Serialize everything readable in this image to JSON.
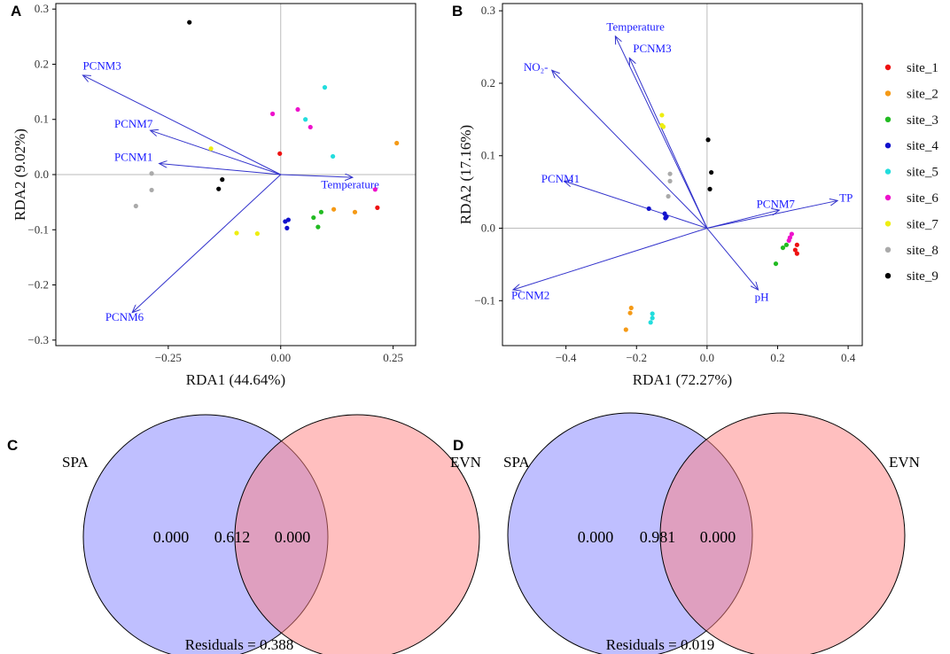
{
  "colors": {
    "arrow": "#3333cc",
    "arrow_label": "#1a1aff",
    "zero_line": "#bbbbbb",
    "frame": "#000000",
    "venn_left": "#8080ff",
    "venn_right": "#ff8080"
  },
  "legend": {
    "items": [
      {
        "label": "site_1",
        "color": "#ee1111"
      },
      {
        "label": "site_2",
        "color": "#f59a16"
      },
      {
        "label": "site_3",
        "color": "#22bb22"
      },
      {
        "label": "site_4",
        "color": "#1111cc"
      },
      {
        "label": "site_5",
        "color": "#22dddd"
      },
      {
        "label": "site_6",
        "color": "#ee11cc"
      },
      {
        "label": "site_7",
        "color": "#eeee11"
      },
      {
        "label": "site_8",
        "color": "#aaaaaa"
      },
      {
        "label": "site_9",
        "color": "#000000"
      }
    ]
  },
  "chart_data": [
    {
      "type": "scatter",
      "panel": "A",
      "xlabel": "RDA1 (44.64%)",
      "ylabel": "RDA2 (9.02%)",
      "xlim": [
        -0.5,
        0.3
      ],
      "ylim": [
        -0.31,
        0.31
      ],
      "xticks": [
        -0.25,
        0.0,
        0.25
      ],
      "xtick_labels": [
        "−0.25",
        "0.00",
        "0.25"
      ],
      "yticks": [
        -0.3,
        -0.2,
        -0.1,
        0.0,
        0.1,
        0.2,
        0.3
      ],
      "ytick_labels": [
        "−0.3",
        "−0.2",
        "−0.1",
        "0.0",
        "0.1",
        "0.2",
        "0.3"
      ],
      "arrows": [
        {
          "label": "PCNM3",
          "x": -0.44,
          "y": 0.18,
          "lx": -0.44,
          "ly": 0.19,
          "anchor": "start"
        },
        {
          "label": "PCNM7",
          "x": -0.29,
          "y": 0.08,
          "lx": -0.37,
          "ly": 0.085,
          "anchor": "start"
        },
        {
          "label": "PCNM1",
          "x": -0.27,
          "y": 0.02,
          "lx": -0.37,
          "ly": 0.025,
          "anchor": "start"
        },
        {
          "label": "Temperature",
          "x": 0.16,
          "y": -0.005,
          "lx": 0.09,
          "ly": -0.025,
          "anchor": "start"
        },
        {
          "label": "PCNM6",
          "x": -0.33,
          "y": -0.25,
          "lx": -0.39,
          "ly": -0.265,
          "anchor": "start"
        }
      ],
      "series": [
        {
          "name": "site_1",
          "points": [
            [
              0.215,
              -0.06
            ],
            [
              -0.002,
              0.038
            ]
          ]
        },
        {
          "name": "site_2",
          "points": [
            [
              0.258,
              0.057
            ],
            [
              0.165,
              -0.068
            ],
            [
              0.118,
              -0.063
            ]
          ]
        },
        {
          "name": "site_3",
          "points": [
            [
              0.09,
              -0.068
            ],
            [
              0.073,
              -0.078
            ],
            [
              0.083,
              -0.095
            ]
          ]
        },
        {
          "name": "site_4",
          "points": [
            [
              0.01,
              -0.085
            ],
            [
              0.017,
              -0.082
            ],
            [
              0.014,
              -0.097
            ]
          ]
        },
        {
          "name": "site_5",
          "points": [
            [
              0.098,
              0.158
            ],
            [
              0.055,
              0.1
            ],
            [
              0.116,
              0.033
            ]
          ]
        },
        {
          "name": "site_6",
          "points": [
            [
              -0.018,
              0.11
            ],
            [
              0.038,
              0.118
            ],
            [
              0.066,
              0.086
            ],
            [
              0.21,
              -0.027
            ]
          ]
        },
        {
          "name": "site_7",
          "points": [
            [
              -0.155,
              0.047
            ],
            [
              -0.098,
              -0.106
            ],
            [
              -0.052,
              -0.107
            ]
          ]
        },
        {
          "name": "site_8",
          "points": [
            [
              -0.287,
              0.002
            ],
            [
              -0.287,
              -0.028
            ],
            [
              -0.322,
              -0.057
            ]
          ]
        },
        {
          "name": "site_9",
          "points": [
            [
              -0.203,
              0.276
            ],
            [
              -0.13,
              -0.009
            ],
            [
              -0.138,
              -0.026
            ]
          ]
        }
      ]
    },
    {
      "type": "scatter",
      "panel": "B",
      "xlabel": "RDA1 (72.27%)",
      "ylabel": "RDA2 (17.16%)",
      "xlim": [
        -0.58,
        0.44
      ],
      "ylim": [
        -0.162,
        0.31
      ],
      "xticks": [
        -0.4,
        -0.2,
        0.0,
        0.2,
        0.4
      ],
      "xtick_labels": [
        "−0.4",
        "−0.2",
        "0.0",
        "0.2",
        "0.4"
      ],
      "yticks": [
        -0.1,
        0.0,
        0.1,
        0.2,
        0.3
      ],
      "ytick_labels": [
        "−0.1",
        "0.0",
        "0.1",
        "0.2",
        "0.3"
      ],
      "arrows": [
        {
          "label": "Temperature",
          "x": -0.26,
          "y": 0.265,
          "lx": -0.285,
          "ly": 0.273,
          "anchor": "start"
        },
        {
          "label": "PCNM3",
          "x": -0.22,
          "y": 0.235,
          "lx": -0.21,
          "ly": 0.243,
          "anchor": "start"
        },
        {
          "label": "NO₂-",
          "x": -0.44,
          "y": 0.218,
          "lx": -0.52,
          "ly": 0.217,
          "anchor": "start"
        },
        {
          "label": "PCNM1",
          "x": -0.405,
          "y": 0.065,
          "lx": -0.47,
          "ly": 0.063,
          "anchor": "start"
        },
        {
          "label": "PCNM7",
          "x": 0.205,
          "y": 0.025,
          "lx": 0.14,
          "ly": 0.028,
          "anchor": "start"
        },
        {
          "label": "TP",
          "x": 0.37,
          "y": 0.038,
          "lx": 0.375,
          "ly": 0.037,
          "anchor": "start"
        },
        {
          "label": "PCNM2",
          "x": -0.55,
          "y": -0.085,
          "lx": -0.555,
          "ly": -0.098,
          "anchor": "start"
        },
        {
          "label": "pH",
          "x": 0.145,
          "y": -0.085,
          "lx": 0.135,
          "ly": -0.1,
          "anchor": "start"
        }
      ],
      "series": [
        {
          "name": "site_1",
          "points": [
            [
              0.255,
              -0.023
            ],
            [
              0.25,
              -0.03
            ],
            [
              0.255,
              -0.035
            ]
          ]
        },
        {
          "name": "site_2",
          "points": [
            [
              -0.215,
              -0.11
            ],
            [
              -0.218,
              -0.117
            ],
            [
              -0.23,
              -0.14
            ]
          ]
        },
        {
          "name": "site_3",
          "points": [
            [
              0.225,
              -0.023
            ],
            [
              0.215,
              -0.027
            ],
            [
              0.195,
              -0.049
            ]
          ]
        },
        {
          "name": "site_4",
          "points": [
            [
              -0.165,
              0.027
            ],
            [
              -0.12,
              0.02
            ],
            [
              -0.115,
              0.016
            ],
            [
              -0.118,
              0.014
            ]
          ]
        },
        {
          "name": "site_5",
          "points": [
            [
              -0.155,
              -0.118
            ],
            [
              -0.155,
              -0.124
            ],
            [
              -0.16,
              -0.13
            ]
          ]
        },
        {
          "name": "site_6",
          "points": [
            [
              0.24,
              -0.008
            ],
            [
              0.235,
              -0.013
            ],
            [
              0.232,
              -0.017
            ]
          ]
        },
        {
          "name": "site_7",
          "points": [
            [
              -0.128,
              0.156
            ],
            [
              -0.128,
              0.142
            ],
            [
              -0.124,
              0.14
            ]
          ]
        },
        {
          "name": "site_8",
          "points": [
            [
              -0.105,
              0.075
            ],
            [
              -0.105,
              0.065
            ],
            [
              -0.11,
              0.044
            ]
          ]
        },
        {
          "name": "site_9",
          "points": [
            [
              0.003,
              0.122
            ],
            [
              0.012,
              0.077
            ],
            [
              0.008,
              0.054
            ]
          ]
        }
      ]
    },
    {
      "type": "venn",
      "panel": "C",
      "left_label": "SPA",
      "right_label": "EVN",
      "left_only": "0.000",
      "overlap": "0.612",
      "right_only": "0.000",
      "residuals_text": "Residuals = 0.388"
    },
    {
      "type": "venn",
      "panel": "D",
      "left_label": "SPA",
      "right_label": "EVN",
      "left_only": "0.000",
      "overlap": "0.981",
      "right_only": "0.000",
      "residuals_text": "Residuals = 0.019"
    }
  ]
}
